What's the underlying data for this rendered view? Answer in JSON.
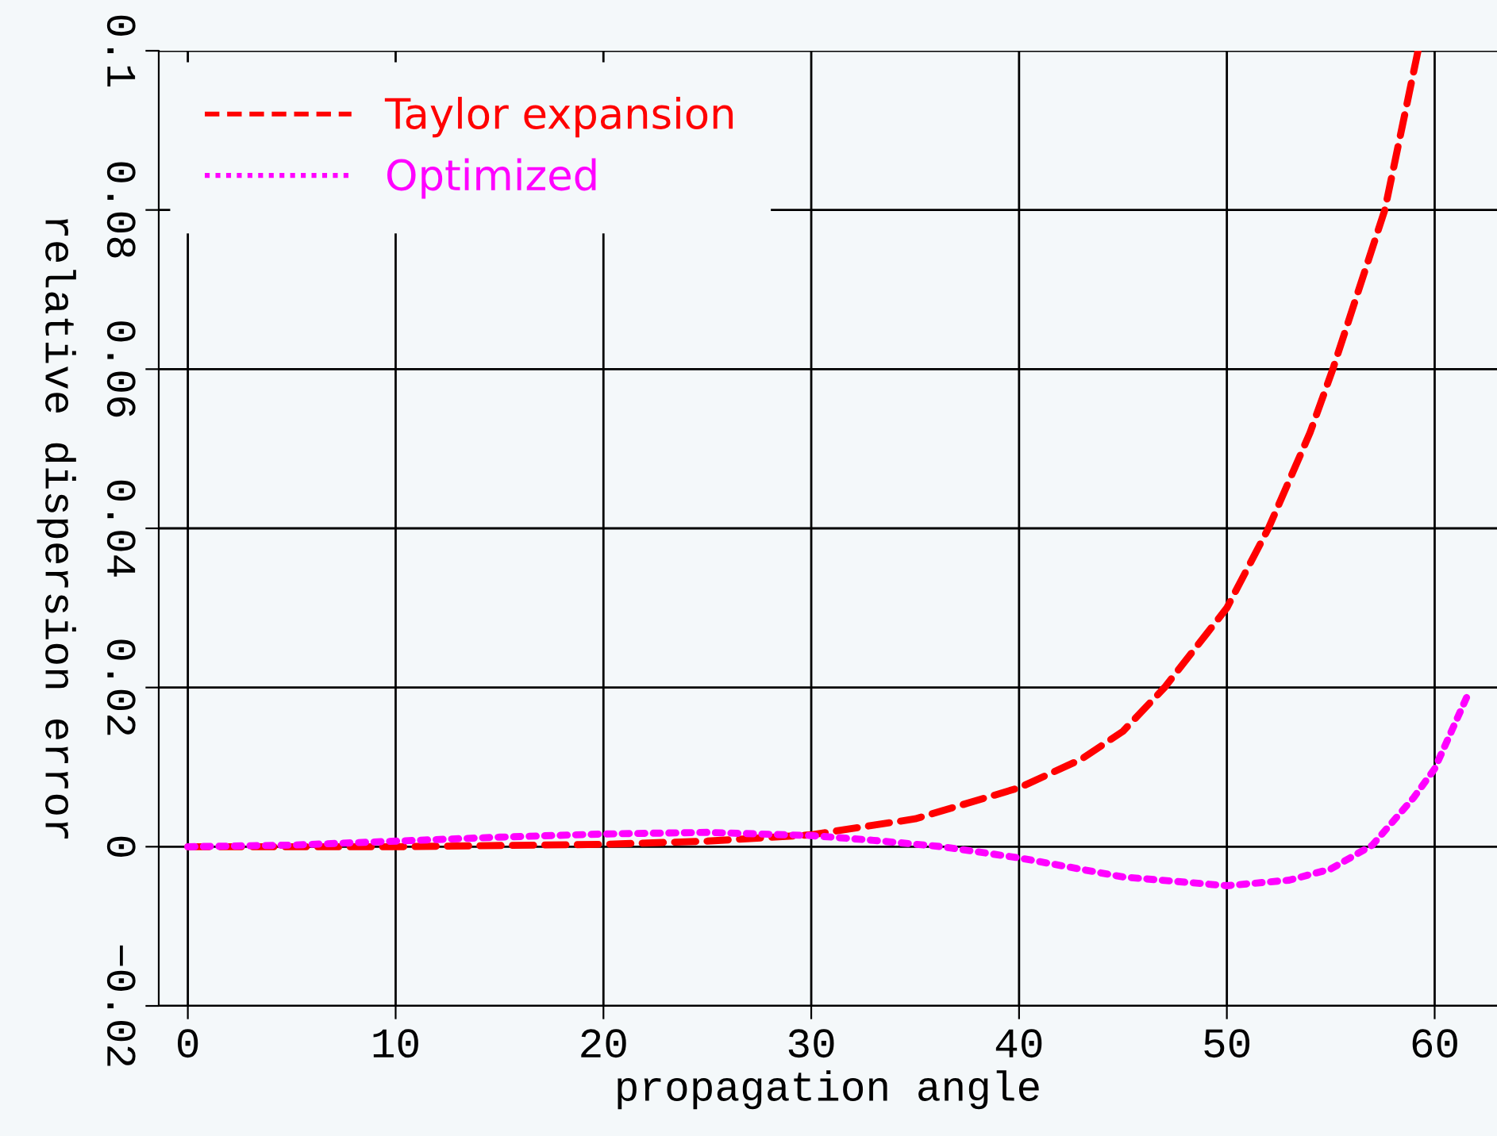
{
  "chart_data": {
    "type": "line",
    "xlabel": "propagation angle",
    "ylabel": "relative dispersion error",
    "xlim": [
      -1.4,
      63
    ],
    "ylim": [
      -0.02,
      0.1
    ],
    "xticks": [
      0,
      10,
      20,
      30,
      40,
      50,
      60
    ],
    "yticks": [
      -0.02,
      0,
      0.02,
      0.04,
      0.06,
      0.08,
      0.1
    ],
    "grid": true,
    "legend": "top left",
    "series": [
      {
        "name": "Taylor expansion",
        "color": "#ff0000",
        "line_style": "dashed",
        "x": [
          0,
          10,
          20,
          25,
          30,
          35,
          40,
          43,
          45,
          47,
          50,
          52,
          54,
          55.1,
          57.6,
          59.2
        ],
        "values": [
          0,
          0,
          0.0003,
          0.0007,
          0.0015,
          0.0035,
          0.0074,
          0.011,
          0.0145,
          0.02,
          0.03,
          0.04,
          0.052,
          0.06,
          0.08,
          0.1
        ]
      },
      {
        "name": "Optimized",
        "color": "#ff00ff",
        "line_style": "dotted",
        "x": [
          0,
          5,
          10,
          15,
          20,
          25,
          30,
          33,
          36.3,
          40,
          45,
          50,
          53,
          55,
          57,
          59,
          60,
          61.7
        ],
        "values": [
          0,
          0.0002,
          0.0007,
          0.0012,
          0.0016,
          0.0018,
          0.0014,
          0.0008,
          0,
          -0.0014,
          -0.0038,
          -0.0049,
          -0.0042,
          -0.0028,
          0.0002,
          0.0062,
          0.0098,
          0.0197
        ]
      }
    ]
  }
}
